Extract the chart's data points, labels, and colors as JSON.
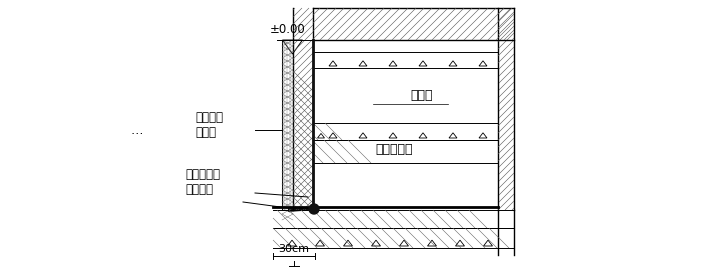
{
  "bg_color": "#ffffff",
  "line_color": "#000000",
  "label_pm000": "±0.00",
  "label_foam": "聚苯乙烯\n泡沫板",
  "label_adh": "加刷带胎体\n的附加层",
  "label_waterproof": "防水层",
  "label_ceiling": "地下室顶板",
  "label_30cm": "30cm",
  "label_dots": "…",
  "fig_width": 7.26,
  "fig_height": 2.67,
  "dpi": 100
}
